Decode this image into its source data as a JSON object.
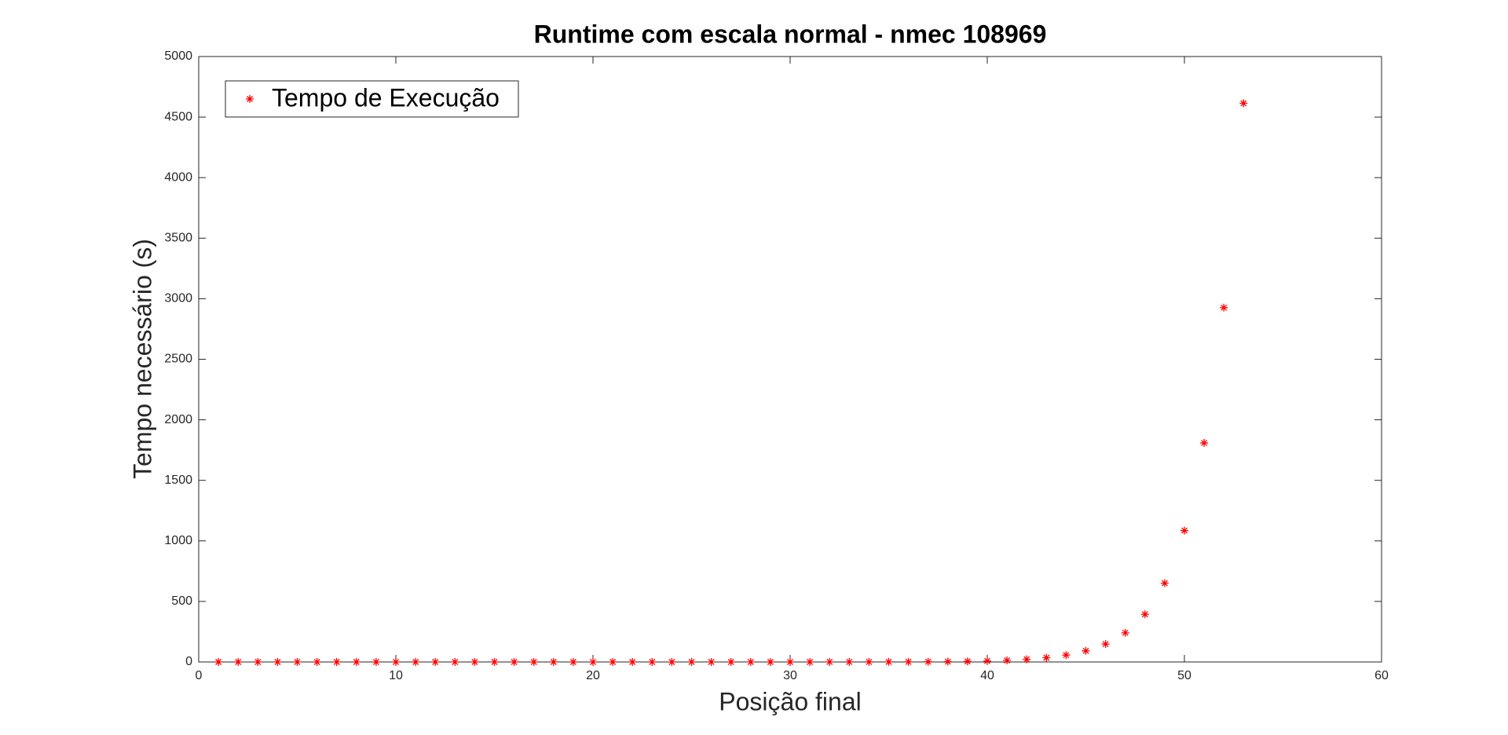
{
  "chart_data": {
    "type": "scatter",
    "title": "Runtime com escala normal - nmec 108969",
    "x_label": "Posição final",
    "y_label": "Tempo necessário (s)",
    "series": [
      {
        "name": "Tempo de Execução",
        "color": "#ff0000",
        "marker": "*",
        "x": [
          1,
          2,
          3,
          4,
          5,
          6,
          7,
          8,
          9,
          10,
          11,
          12,
          13,
          14,
          15,
          16,
          17,
          18,
          19,
          20,
          21,
          22,
          23,
          24,
          25,
          26,
          27,
          28,
          29,
          30,
          31,
          32,
          33,
          34,
          35,
          36,
          37,
          38,
          39,
          40,
          41,
          42,
          43,
          44,
          45,
          46,
          47,
          48,
          49,
          50,
          51,
          52,
          53
        ],
        "values": [
          0,
          0,
          0,
          0,
          0,
          0,
          0,
          0,
          0,
          0,
          0,
          0,
          0,
          0,
          0,
          0,
          0,
          0,
          0,
          0,
          0,
          0,
          0,
          0,
          0,
          0,
          0,
          0.03,
          0.04,
          0.07,
          0.11,
          0.18,
          0.29,
          0.46,
          0.75,
          1.2,
          2,
          3,
          5,
          8,
          13,
          22,
          35,
          57,
          92,
          148,
          241,
          394,
          651,
          1085,
          1809,
          2926,
          4614
        ]
      }
    ],
    "xlim": [
      0,
      60
    ],
    "xticks": [
      0,
      10,
      20,
      30,
      40,
      50,
      60
    ],
    "ylim": [
      0,
      5000
    ],
    "yticks": [
      0,
      500,
      1000,
      1500,
      2000,
      2500,
      3000,
      3500,
      4000,
      4500,
      5000
    ],
    "legend": "upper left",
    "box": true
  }
}
